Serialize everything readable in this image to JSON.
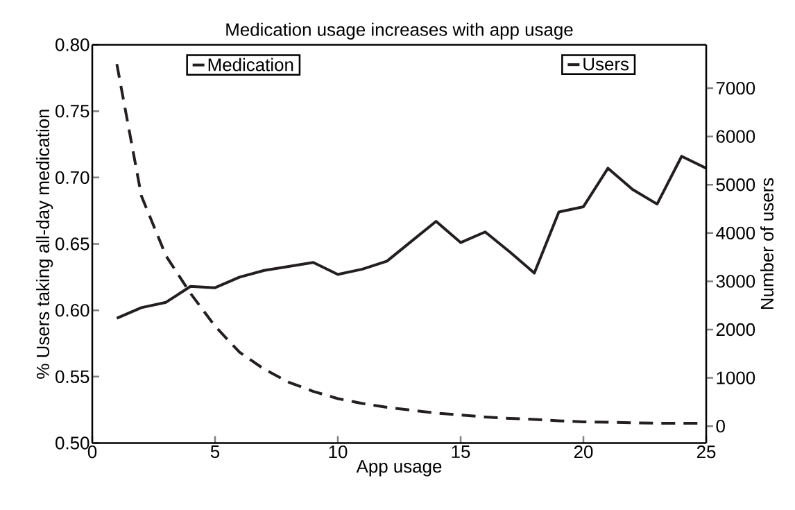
{
  "chart_data": {
    "type": "line",
    "title": "Medication usage increases with app usage",
    "xlabel": "App usage",
    "ylabel": "% Users taking all-day medication",
    "y2label": "Number of users",
    "x": [
      1,
      2,
      3,
      4,
      5,
      6,
      7,
      8,
      9,
      10,
      11,
      12,
      13,
      14,
      15,
      16,
      17,
      18,
      19,
      20,
      21,
      22,
      23,
      24,
      25
    ],
    "series": [
      {
        "name": "Medication",
        "color": "#231f20",
        "line_style": "solid",
        "values": [
          0.594,
          0.602,
          0.606,
          0.618,
          0.617,
          0.625,
          0.63,
          0.633,
          0.636,
          0.627,
          0.631,
          0.637,
          0.652,
          0.667,
          0.651,
          0.659,
          0.644,
          0.628,
          0.674,
          0.678,
          0.707,
          0.691,
          0.68,
          0.716,
          0.707
        ]
      },
      {
        "name": "Users",
        "color": "#231f20",
        "line_style": "dashed",
        "axis": "y2",
        "values": [
          7500,
          4770,
          3530,
          2750,
          2070,
          1530,
          1180,
          910,
          720,
          570,
          470,
          390,
          330,
          270,
          230,
          190,
          160,
          140,
          110,
          90,
          80,
          70,
          60,
          60,
          60
        ]
      }
    ],
    "xlim": [
      0,
      25
    ],
    "xticks": [
      0,
      5,
      10,
      15,
      20,
      25
    ],
    "ylim": [
      0.5,
      0.8
    ],
    "yticks": [
      {
        "value": 0.5,
        "label": "0.50"
      },
      0.55,
      {
        "value": 0.6,
        "label": "0.60"
      },
      0.65,
      {
        "value": 0.7,
        "label": "0.70"
      },
      0.75,
      {
        "value": 0.8,
        "label": "0.80"
      }
    ],
    "y2lim": [
      -350,
      7900
    ],
    "y2ticks": [
      0,
      1000,
      2000,
      3000,
      4000,
      5000,
      6000,
      7000
    ],
    "legend": "top",
    "grid": false
  }
}
